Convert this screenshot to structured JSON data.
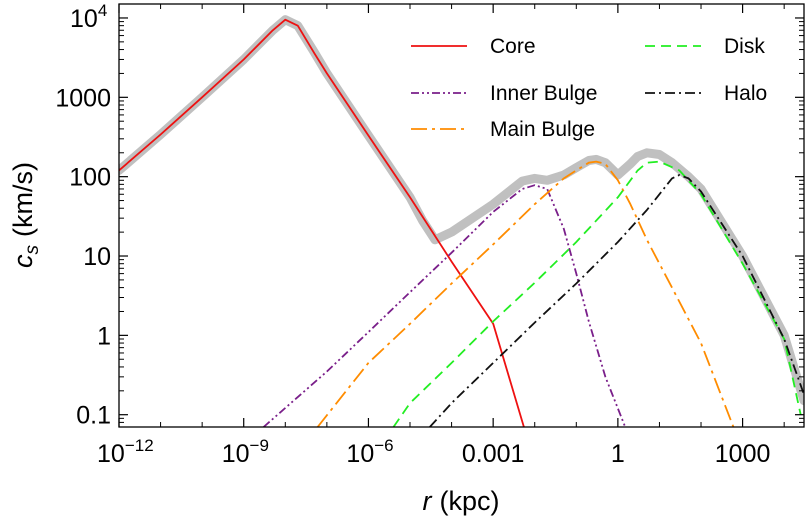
{
  "chart_data": {
    "type": "line",
    "xlabel": {
      "var": "r",
      "unit": "(kpc)"
    },
    "ylabel": {
      "var": "c",
      "sub": "s",
      "unit": "(km/s)"
    },
    "x_scale": "log",
    "y_scale": "log",
    "xlim": [
      1e-12,
      30000
    ],
    "ylim": [
      0.07,
      15000
    ],
    "x_ticks": [
      {
        "value": 1e-12,
        "label": "10",
        "sup": "−12"
      },
      {
        "value": 1e-09,
        "label": "10",
        "sup": "−9"
      },
      {
        "value": 1e-06,
        "label": "10",
        "sup": "−6"
      },
      {
        "value": 0.001,
        "label": "0.001",
        "sup": ""
      },
      {
        "value": 1,
        "label": "1",
        "sup": ""
      },
      {
        "value": 1000,
        "label": "1000",
        "sup": ""
      }
    ],
    "y_ticks": [
      {
        "value": 0.1,
        "label": "0.1",
        "sup": ""
      },
      {
        "value": 1,
        "label": "1",
        "sup": ""
      },
      {
        "value": 10,
        "label": "10",
        "sup": ""
      },
      {
        "value": 100,
        "label": "100",
        "sup": ""
      },
      {
        "value": 1000,
        "label": "1000",
        "sup": ""
      },
      {
        "value": 10000,
        "label": "10",
        "sup": "4"
      }
    ],
    "grid": false,
    "legend_position": "top-right",
    "legend_columns": 2,
    "series": [
      {
        "name": "Core",
        "color": "#ee1111",
        "dash": "solid",
        "x": [
          1e-12,
          1e-11,
          1e-10,
          1e-09,
          5e-09,
          1e-08,
          2e-08,
          5e-08,
          1e-07,
          1e-06,
          1e-05,
          0.0001,
          0.001,
          0.0055
        ],
        "y": [
          120,
          340,
          1000,
          3000,
          7000,
          9500,
          8000,
          3600,
          2000,
          330,
          55,
          8.5,
          1.4,
          0.07
        ]
      },
      {
        "name": "Inner Bulge",
        "color": "#7a1f8a",
        "dash": "dashdotdot",
        "x": [
          3e-09,
          1e-07,
          1e-06,
          1e-05,
          0.0001,
          0.001,
          0.005,
          0.01,
          0.02,
          0.05,
          0.1,
          0.2,
          0.5,
          1.5
        ],
        "y": [
          0.07,
          0.35,
          1.1,
          3.5,
          11,
          36,
          70,
          78,
          70,
          22,
          6,
          1.5,
          0.3,
          0.07
        ]
      },
      {
        "name": "Main Bulge",
        "color": "#ff8c00",
        "dash": "longdashdot",
        "x": [
          6e-08,
          1e-06,
          1e-05,
          0.0001,
          0.001,
          0.01,
          0.05,
          0.1,
          0.2,
          0.3,
          0.5,
          1,
          2,
          5,
          20,
          100,
          600
        ],
        "y": [
          0.07,
          0.45,
          1.4,
          4.5,
          14,
          45,
          95,
          120,
          150,
          155,
          145,
          90,
          45,
          16,
          4,
          0.8,
          0.07
        ]
      },
      {
        "name": "Disk",
        "color": "#22ee22",
        "dash": "dash",
        "x": [
          4e-06,
          1e-05,
          0.0001,
          0.001,
          0.01,
          0.1,
          1,
          3,
          5,
          10,
          30,
          100,
          1000,
          10000,
          25000
        ],
        "y": [
          0.07,
          0.14,
          0.45,
          1.5,
          4.6,
          15,
          55,
          120,
          150,
          155,
          120,
          60,
          8,
          0.9,
          0.1
        ]
      },
      {
        "name": "Halo",
        "color": "#111111",
        "dash": "dashdot",
        "x": [
          3e-05,
          0.0001,
          0.001,
          0.01,
          0.1,
          1,
          5,
          10,
          20,
          30,
          50,
          100,
          1000,
          10000,
          30000
        ],
        "y": [
          0.07,
          0.14,
          0.45,
          1.45,
          4.5,
          15,
          38,
          60,
          95,
          105,
          95,
          65,
          10,
          0.9,
          0.18
        ]
      },
      {
        "name": "",
        "color": "#c0c0c0",
        "dash": "thick",
        "x": [
          1e-12,
          1e-11,
          1e-10,
          1e-09,
          5e-09,
          1e-08,
          2e-08,
          5e-08,
          1e-07,
          1e-06,
          1e-05,
          2e-05,
          4e-05,
          0.0001,
          0.001,
          0.005,
          0.01,
          0.02,
          0.05,
          0.1,
          0.2,
          0.3,
          0.5,
          1,
          2,
          3,
          5,
          10,
          20,
          50,
          100,
          1000,
          10000,
          30000
        ],
        "y": [
          120,
          340,
          1000,
          3000,
          7000,
          9500,
          8000,
          3700,
          2000,
          330,
          55,
          28,
          16,
          20,
          45,
          88,
          95,
          90,
          105,
          130,
          160,
          165,
          150,
          105,
          145,
          180,
          200,
          190,
          150,
          100,
          70,
          10,
          1,
          0.15
        ]
      }
    ]
  }
}
